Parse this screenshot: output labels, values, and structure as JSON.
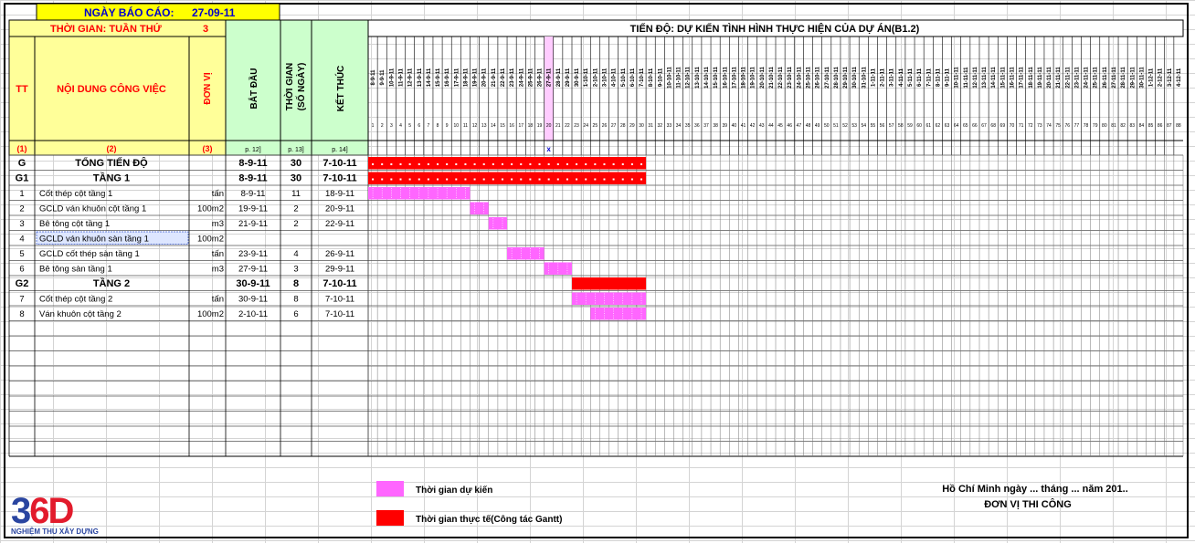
{
  "report": {
    "date_label": "NGÀY BÁO CÁO:",
    "date_value": "27-09-11",
    "week_label": "THỜI GIAN: TUẦN THỨ",
    "week_value": "3"
  },
  "headers": {
    "tt": "TT",
    "content": "NỘI DUNG CÔNG VIỆC",
    "unit": "ĐƠN VỊ",
    "start": "BẮT ĐẦU",
    "duration_1": "THỜI GIAN",
    "duration_2": "(SỐ NGÀY)",
    "end": "KẾT THÚC",
    "gantt_title": "TIẾN ĐỘ: DỰ KIẾN TÌNH HÌNH THỰC HIỆN CỦA DỰ ÁN(B1.2)"
  },
  "index_row": {
    "c1": "(1)",
    "c2": "(2)",
    "c3": "(3)",
    "c4": "p. 12]",
    "c5": "p. 13]",
    "c6": "p. 14]",
    "today_marker": "x"
  },
  "chart_data": {
    "type": "gantt",
    "title": "TIẾN ĐỘ: DỰ KIẾN TÌNH HÌNH THỰC HIỆN CỦA DỰ ÁN(B1.2)",
    "timeline": {
      "first_day": "8-9-11",
      "days": 88,
      "today": "27-9-11"
    },
    "legend": [
      {
        "key": "planned",
        "label": "Thời gian dự kiến",
        "color": "#ff66ff"
      },
      {
        "key": "actual",
        "label": "Thời gian thực tế(Công tác Gantt)",
        "color": "#ff0000"
      }
    ],
    "tasks": [
      {
        "tt": "G",
        "name": "TỔNG TIẾN ĐỘ",
        "unit": "",
        "start": "8-9-11",
        "duration": "30",
        "end": "7-10-11",
        "level": "group",
        "bar_start": 0,
        "bar_days": 30
      },
      {
        "tt": "G1",
        "name": "TẦNG 1",
        "unit": "",
        "start": "8-9-11",
        "duration": "30",
        "end": "7-10-11",
        "level": "group",
        "bar_start": 0,
        "bar_days": 30
      },
      {
        "tt": "1",
        "name": "Cốt thép cột tầng 1",
        "unit": "tấn",
        "start": "8-9-11",
        "duration": "11",
        "end": "18-9-11",
        "level": "task",
        "bar_start": 0,
        "bar_days": 11
      },
      {
        "tt": "2",
        "name": "GCLD ván khuôn cột tầng 1",
        "unit": "100m2",
        "start": "19-9-11",
        "duration": "2",
        "end": "20-9-11",
        "level": "task",
        "bar_start": 11,
        "bar_days": 2
      },
      {
        "tt": "3",
        "name": "Bê tông cột tầng 1",
        "unit": "m3",
        "start": "21-9-11",
        "duration": "2",
        "end": "22-9-11",
        "level": "task",
        "bar_start": 13,
        "bar_days": 2
      },
      {
        "tt": "4",
        "name": "GCLD ván khuôn sàn tầng 1",
        "unit": "100m2",
        "start": "",
        "duration": "",
        "end": "",
        "level": "task",
        "bar_start": null,
        "bar_days": 0
      },
      {
        "tt": "5",
        "name": "GCLD cốt thép sàn tầng 1",
        "unit": "tấn",
        "start": "23-9-11",
        "duration": "4",
        "end": "26-9-11",
        "level": "task",
        "bar_start": 15,
        "bar_days": 4
      },
      {
        "tt": "6",
        "name": "Bê tông sàn tầng 1",
        "unit": "m3",
        "start": "27-9-11",
        "duration": "3",
        "end": "29-9-11",
        "level": "task",
        "bar_start": 19,
        "bar_days": 3
      },
      {
        "tt": "G2",
        "name": "TẦNG 2",
        "unit": "",
        "start": "30-9-11",
        "duration": "8",
        "end": "7-10-11",
        "level": "group",
        "bar_start": 22,
        "bar_days": 8
      },
      {
        "tt": "7",
        "name": "Cốt thép cột tầng 2",
        "unit": "tấn",
        "start": "30-9-11",
        "duration": "8",
        "end": "7-10-11",
        "level": "task",
        "bar_start": 22,
        "bar_days": 8
      },
      {
        "tt": "8",
        "name": "Ván khuôn cột tầng 2",
        "unit": "100m2",
        "start": "2-10-11",
        "duration": "6",
        "end": "7-10-11",
        "level": "task",
        "bar_start": 24,
        "bar_days": 6
      }
    ]
  },
  "legend": {
    "planned": "Thời gian dự kiến",
    "actual": "Thời gian thực tế(Công tác Gantt)",
    "planned_color": "#ff66ff",
    "actual_color": "#ff0000"
  },
  "footer": {
    "place_date": "Hồ Chí Minh ngày ... tháng ... năm 201..",
    "org": "ĐƠN VỊ THI CÔNG"
  },
  "logo": {
    "mark_a": "3",
    "mark_b": "6D",
    "sub": "NGHIỆM THU XÂY DỰNG"
  },
  "colors": {
    "header_yellow": "#ffff99",
    "header_green": "#ccffcc",
    "accent_red": "#ff0000",
    "title_blue": "#0000cc",
    "date_box": "#ffff00"
  }
}
